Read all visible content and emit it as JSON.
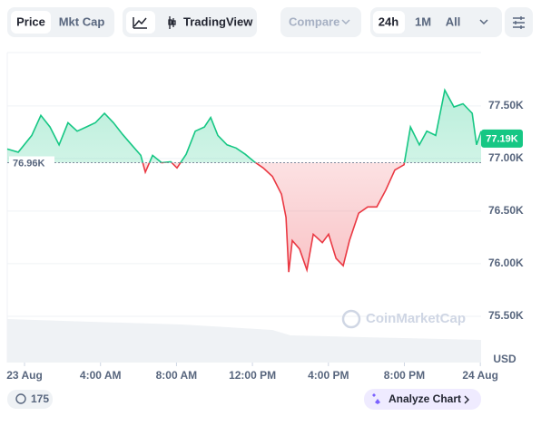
{
  "toolbar": {
    "tabs": [
      "Price",
      "Mkt Cap"
    ],
    "tradingview": "TradingView",
    "compare": "Compare",
    "ranges": [
      "24h",
      "1M",
      "All"
    ]
  },
  "chart_data": {
    "type": "line",
    "x": [
      -0.91,
      -0.33,
      0.38,
      0.86,
      1.34,
      1.82,
      2.29,
      2.77,
      3.25,
      3.73,
      4.21,
      4.68,
      5.16,
      5.64,
      6.12,
      6.36,
      6.74,
      7.22,
      7.7,
      8.03,
      8.51,
      8.99,
      9.47,
      9.8,
      10.18,
      10.66,
      11.14,
      11.62,
      12.09,
      12.57,
      13.05,
      13.53,
      13.77,
      13.91,
      14.1,
      14.48,
      14.87,
      15.2,
      15.68,
      16.01,
      16.4,
      16.78,
      17.11,
      17.59,
      18.07,
      18.55,
      19.02,
      19.5,
      19.98,
      20.32,
      20.79,
      21.18,
      21.65,
      22.13,
      22.61,
      23.09,
      23.57,
      23.8,
      24.04
    ],
    "series": [
      {
        "name": "Price",
        "color": "#16c784",
        "values": [
          77.09,
          77.06,
          77.22,
          77.41,
          77.3,
          77.13,
          77.34,
          77.26,
          77.3,
          77.34,
          77.43,
          77.34,
          77.23,
          77.13,
          77.03,
          76.87,
          77.03,
          76.96,
          76.97,
          76.91,
          77.04,
          77.26,
          77.3,
          77.39,
          77.22,
          77.13,
          77.1,
          77.04,
          76.97,
          76.91,
          76.83,
          76.66,
          76.44,
          75.92,
          76.22,
          76.14,
          75.94,
          76.28,
          76.2,
          76.28,
          76.05,
          75.98,
          76.22,
          76.48,
          76.54,
          76.54,
          76.7,
          76.89,
          76.94,
          77.3,
          77.13,
          77.26,
          77.22,
          77.65,
          77.49,
          77.52,
          77.43,
          77.13,
          77.26
        ]
      }
    ],
    "down_color": "#ea3943",
    "xlim": [
      -0.91,
      24.04
    ],
    "xticks": [
      {
        "value": 0,
        "label": "23 Aug"
      },
      {
        "value": 4,
        "label": "4:00 AM"
      },
      {
        "value": 8,
        "label": "8:00 AM"
      },
      {
        "value": 12,
        "label": "12:00 PM"
      },
      {
        "value": 16,
        "label": "4:00 PM"
      },
      {
        "value": 20,
        "label": "8:00 PM"
      },
      {
        "value": 24,
        "label": "24 Aug"
      }
    ],
    "ylim": [
      75.06,
      77.99
    ],
    "yticks": [
      {
        "value": 75.5,
        "label": "75.50K"
      },
      {
        "value": 76.0,
        "label": "76.00K"
      },
      {
        "value": 76.5,
        "label": "76.50K"
      },
      {
        "value": 77.0,
        "label": "77.00K"
      },
      {
        "value": 77.5,
        "label": "77.50K"
      }
    ],
    "grid": true,
    "baseline": {
      "value": 76.96,
      "label": "76.96K"
    },
    "current": {
      "value": 77.19,
      "label": "77.19K"
    },
    "y_unit_label": "USD",
    "watermark": "CoinMarketCap"
  },
  "footer": {
    "comments": 175,
    "analyze": "Analyze Chart"
  }
}
